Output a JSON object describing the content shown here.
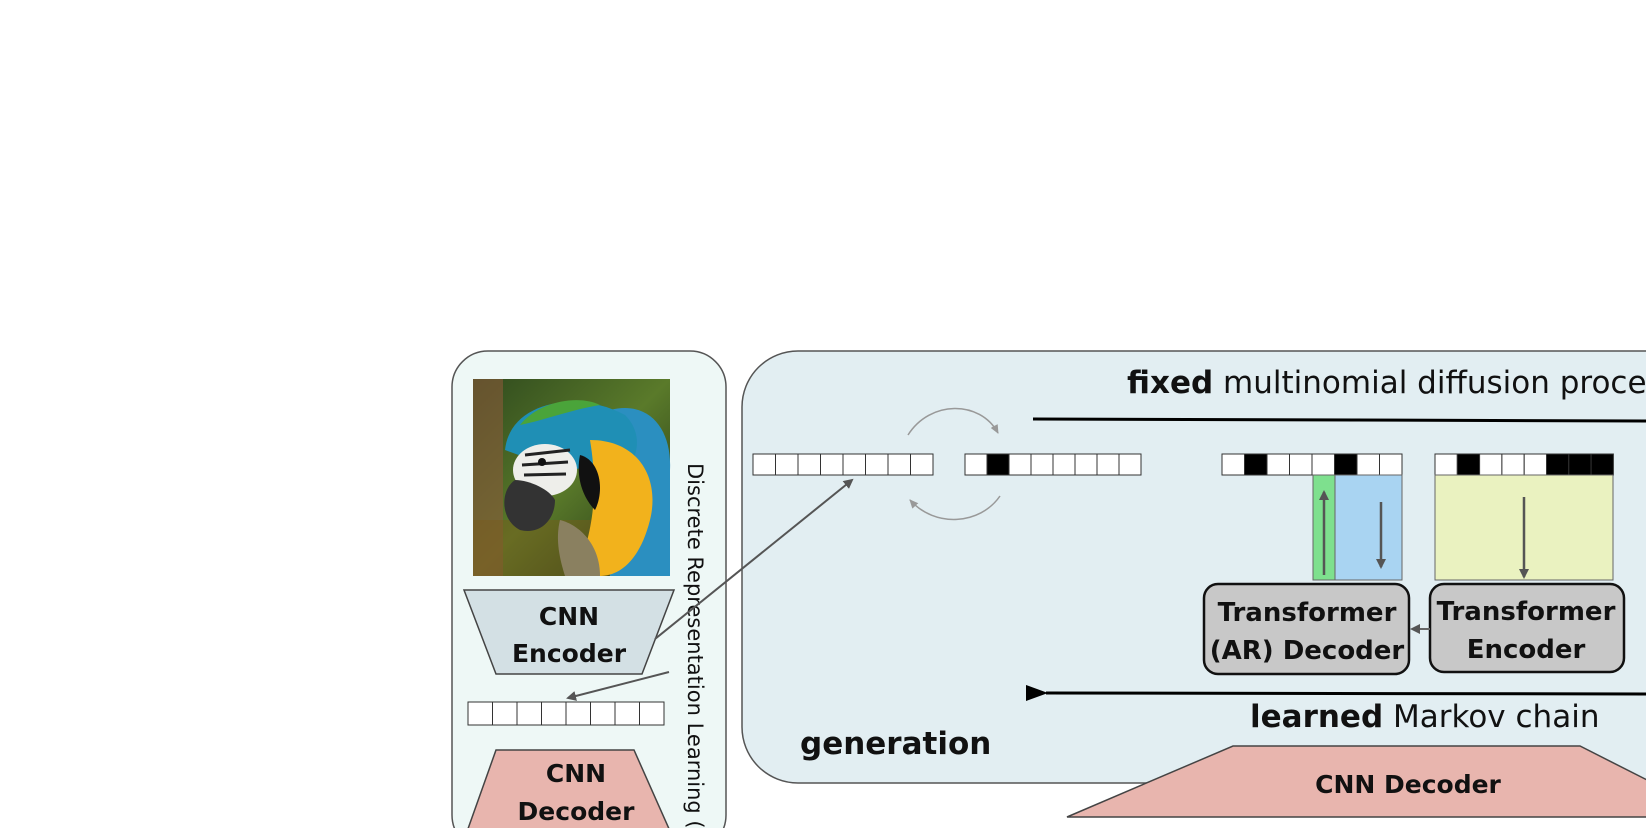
{
  "left_panel": {
    "encoder_line1": "CNN",
    "encoder_line2": "Encoder",
    "decoder_line1": "CNN",
    "decoder_line2": "Decoder",
    "vertical_label": "Discrete Representation Learning (V"
  },
  "diffusion": {
    "fixed_bold": "fixed",
    "fixed_rest": " multinomial diffusion process",
    "learned_bold": "learned",
    "learned_rest": " Markov chain",
    "generation_label": "generation"
  },
  "transformer": {
    "decoder_line1": "Transformer",
    "decoder_line2": "(AR) Decoder",
    "encoder_line1": "Transformer",
    "encoder_line2": "Encoder"
  },
  "bottom": {
    "cnn_decoder_label": "CNN Decoder"
  },
  "image": {
    "description_icon": "parrot-photo-icon"
  },
  "colors": {
    "left_panel_bg": "#eef8f6",
    "right_panel_bg": "#e2eef2",
    "encoder_fill": "#d3e0e4",
    "decoder_fill": "#e8b5ae",
    "transformer_fill": "#c8c8c8",
    "green_strip": "#7ee08e",
    "blue_strip": "#a9d4f2",
    "yellow_block": "#eaf2c0"
  }
}
